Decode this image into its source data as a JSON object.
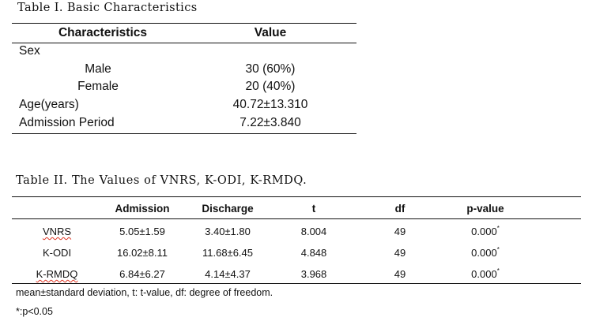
{
  "table1": {
    "title": "Table I. Basic Characteristics",
    "headers": {
      "characteristics": "Characteristics",
      "value": "Value"
    },
    "rows": [
      {
        "label": "Sex",
        "value": ""
      },
      {
        "label": "Male",
        "value": "30 (60%)"
      },
      {
        "label": "Female",
        "value": "20 (40%)"
      },
      {
        "label": "Age(years)",
        "value": "40.72±13.310"
      },
      {
        "label": "Admission Period",
        "value": "7.22±3.840"
      }
    ]
  },
  "table2": {
    "title": "Table II. The Values of VNRS, K-ODI, K-RMDQ.",
    "headers": [
      "",
      "Admission",
      "Discharge",
      "t",
      "df",
      "p-value"
    ],
    "rows": [
      {
        "name": "VNRS",
        "admission": "5.05±1.59",
        "discharge": "3.40±1.80",
        "t": "8.004",
        "df": "49",
        "p": "0.000",
        "sig": "*"
      },
      {
        "name": "K-ODI",
        "admission": "16.02±8.11",
        "discharge": "11.68±6.45",
        "t": "4.848",
        "df": "49",
        "p": "0.000",
        "sig": "*"
      },
      {
        "name": "K-RMDQ",
        "admission": "6.84±6.27",
        "discharge": "4.14±4.37",
        "t": "3.968",
        "df": "49",
        "p": "0.000",
        "sig": "*"
      }
    ],
    "footnote1": "mean±standard deviation, t: t-value, df: degree of freedom.",
    "footnote2": "*:p<0.05"
  }
}
